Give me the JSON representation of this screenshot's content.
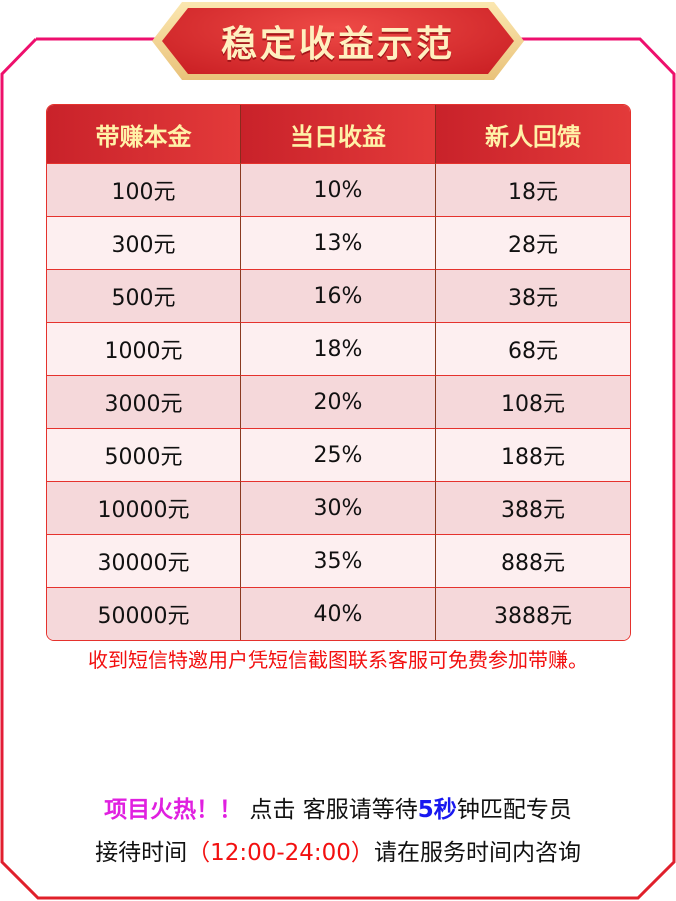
{
  "title": "稳定收益示范",
  "table": {
    "headers": [
      "带赚本金",
      "当日收益",
      "新人回馈"
    ],
    "rows": [
      [
        "100元",
        "10%",
        "18元"
      ],
      [
        "300元",
        "13%",
        "28元"
      ],
      [
        "500元",
        "16%",
        "38元"
      ],
      [
        "1000元",
        "18%",
        "68元"
      ],
      [
        "3000元",
        "20%",
        "108元"
      ],
      [
        "5000元",
        "25%",
        "188元"
      ],
      [
        "10000元",
        "30%",
        "388元"
      ],
      [
        "30000元",
        "35%",
        "888元"
      ],
      [
        "50000元",
        "40%",
        "3888元"
      ]
    ]
  },
  "notice": "收到短信特邀用户凭短信截图联系客服可免费参加带赚。",
  "footer": {
    "hot": "项目火热！！",
    "line1_a": " 点击 客服请等待",
    "line1_highlight": "5秒",
    "line1_b": "钟匹配专员",
    "line2_a": "接待时间",
    "line2_hours": "（12:00-24:00）",
    "line2_b": "请在服务时间内咨询"
  },
  "colors": {
    "accent": "#e5322d",
    "header_text": "#fff2a8",
    "hot": "#e020e0",
    "highlight": "#1818f0"
  }
}
